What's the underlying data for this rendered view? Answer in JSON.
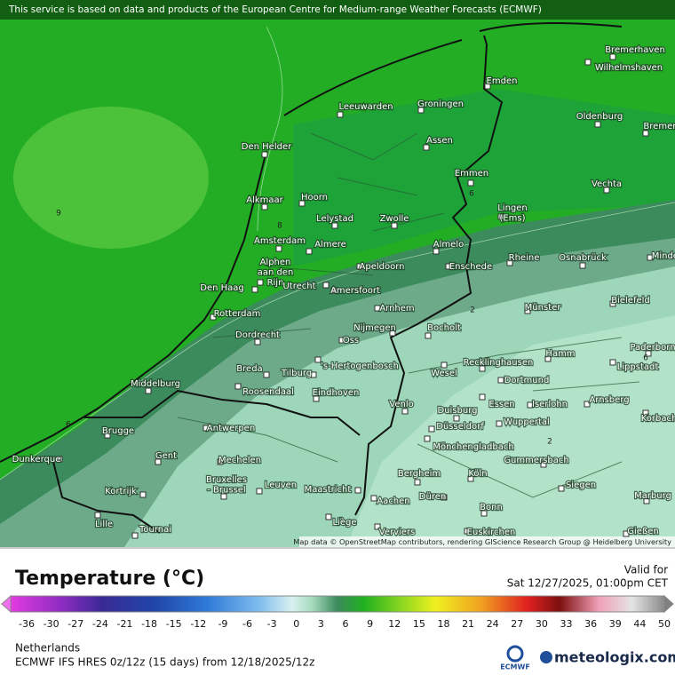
{
  "header": {
    "attribution": "This service is based on data and products of the European Centre for Medium-range Weather Forecasts (ECMWF)"
  },
  "map": {
    "cities": [
      [
        "Bremerhaven"
      ],
      [
        "Wilhelmshaven"
      ],
      [
        "Emden"
      ],
      [
        "Groningen"
      ],
      [
        "Leeuwarden"
      ],
      [
        "Oldenburg"
      ],
      [
        "Bremen"
      ],
      [
        "Den Helder"
      ],
      [
        "Assen"
      ],
      [
        "Emmen"
      ],
      [
        "Vechta"
      ],
      [
        "Alkmaar"
      ],
      [
        "Hoorn"
      ],
      [
        "Lelystad"
      ],
      [
        "Zwolle"
      ],
      [
        "Lingen",
        "(Ems)"
      ],
      [
        "Amsterdam"
      ],
      [
        "Almere"
      ],
      [
        "Almelo"
      ],
      [
        "Rheine"
      ],
      [
        "Osnabrück"
      ],
      [
        "Minden"
      ],
      [
        "Alphen",
        "aan den",
        "Rijn"
      ],
      [
        "Den Haag"
      ],
      [
        "Utrecht"
      ],
      [
        "Apeldoorn"
      ],
      [
        "Enschede"
      ],
      [
        "Amersfoort"
      ],
      [
        "Bielefeld"
      ],
      [
        "Arnhem"
      ],
      [
        "Münster"
      ],
      [
        "Rotterdam"
      ],
      [
        "Nijmegen"
      ],
      [
        "Bocholt"
      ],
      [
        "Dordrecht"
      ],
      [
        "Oss"
      ],
      [
        "Hamm"
      ],
      [
        "Paderborn"
      ],
      [
        "Lippstadt"
      ],
      [
        "Breda"
      ],
      [
        "Tilburg"
      ],
      [
        "'s-Hertogenbosch"
      ],
      [
        "Recklinghausen"
      ],
      [
        "Wesel"
      ],
      [
        "Middelburg"
      ],
      [
        "Roosendaal"
      ],
      [
        "Eindhoven"
      ],
      [
        "Dortmund"
      ],
      [
        "Iserlohn"
      ],
      [
        "Venlo"
      ],
      [
        "Essen"
      ],
      [
        "Duisburg"
      ],
      [
        "Arnsberg"
      ],
      [
        "Korbach"
      ],
      [
        "Wuppertal"
      ],
      [
        "Brugge"
      ],
      [
        "Antwerpen"
      ],
      [
        "Düsseldorf"
      ],
      [
        "Mönchengladbach"
      ],
      [
        "Gent"
      ],
      [
        "Mechelen"
      ],
      [
        "Gummersbach"
      ],
      [
        "Bruxelles",
        "- Brussel"
      ],
      [
        "Leuven"
      ],
      [
        "Maastricht"
      ],
      [
        "Bergheim"
      ],
      [
        "Köln"
      ],
      [
        "Siegen"
      ],
      [
        "Kortrijk"
      ],
      [
        "Düren"
      ],
      [
        "Aachen"
      ],
      [
        "Marburg"
      ],
      [
        "Bonn"
      ],
      [
        "Dunkerque"
      ],
      [
        "Lille"
      ],
      [
        "Tournai"
      ],
      [
        "Liège"
      ],
      [
        "Verviers"
      ],
      [
        "Euskirchen"
      ],
      [
        "Gießen"
      ]
    ],
    "contour_labels": [
      9,
      6,
      8,
      2,
      2,
      6,
      6
    ],
    "credit": "Map data © OpenStreetMap contributors, rendering GIScience Research Group @ Heidelberg University"
  },
  "legend": {
    "title": "Temperature (°C)",
    "ticks": [
      -36,
      -30,
      -27,
      -24,
      -21,
      -18,
      -15,
      -12,
      -9,
      -6,
      -3,
      0,
      3,
      6,
      9,
      12,
      15,
      18,
      21,
      24,
      27,
      30,
      33,
      36,
      39,
      44,
      50
    ]
  },
  "valid": {
    "label": "Valid for",
    "time": "Sat 12/27/2025, 01:00pm CET"
  },
  "footer": {
    "region": "Netherlands",
    "model": "ECMWF IFS HRES 0z/12z (15 days) from  12/18/2025/12z",
    "ecmwf": "ECMWF",
    "brand": "meteologix.com"
  }
}
